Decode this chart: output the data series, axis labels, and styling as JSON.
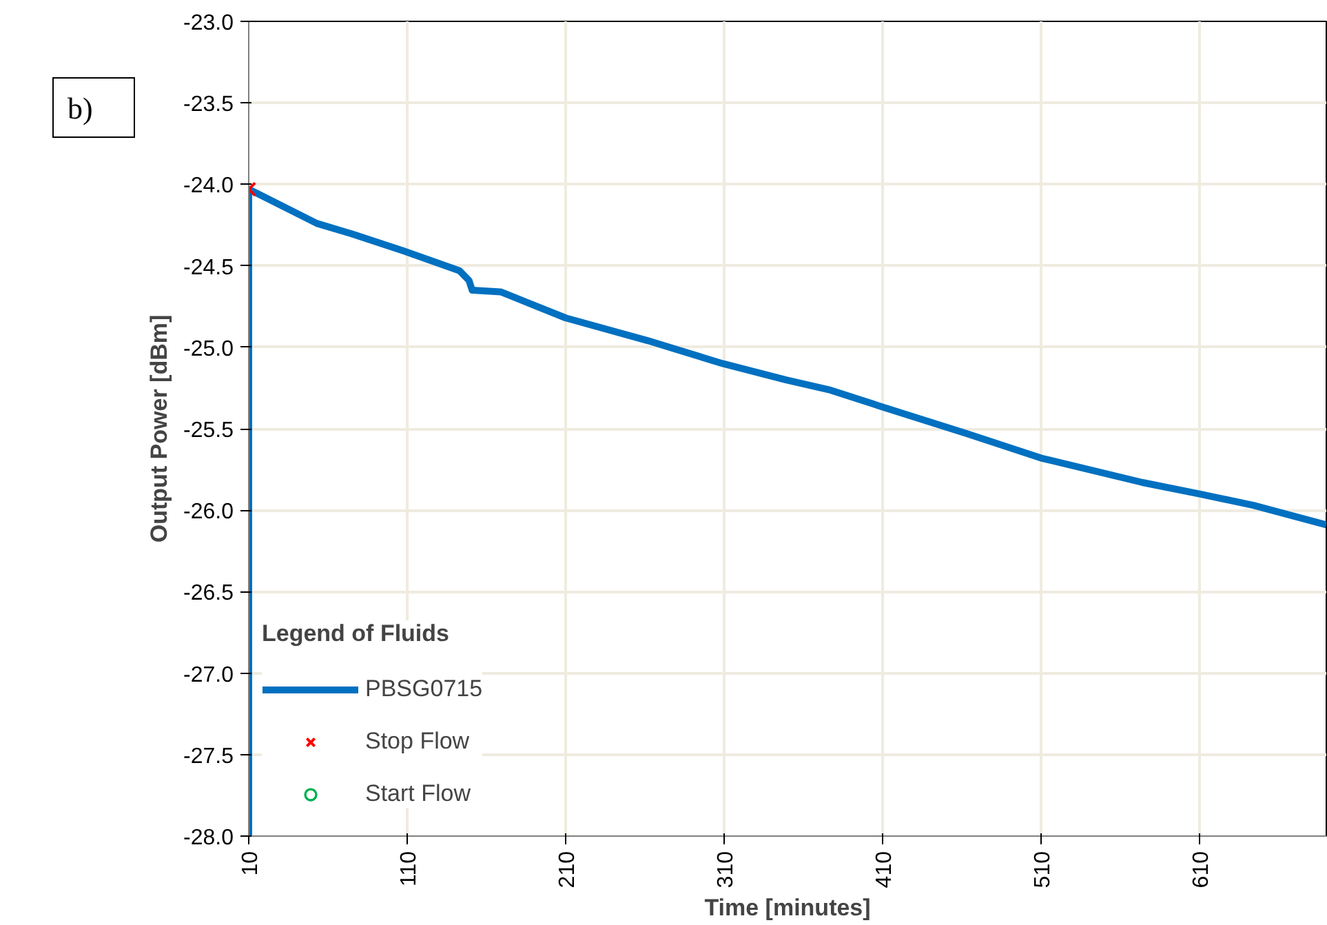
{
  "chart_data": {
    "type": "line",
    "xlabel": "Time [minutes]",
    "ylabel": "Output Power [dBm]",
    "legend_title": "Legend of Fluids",
    "annotations": [
      "b)"
    ],
    "xlim": [
      10,
      690
    ],
    "ylim": [
      -28,
      -23
    ],
    "xticks": [
      10,
      110,
      210,
      310,
      410,
      510,
      610
    ],
    "yticks": [
      {
        "value": -28,
        "label": "-28.0"
      },
      {
        "value": -27.5,
        "label": "-27.5"
      },
      {
        "value": -27,
        "label": "-27.0"
      },
      {
        "value": -26.5,
        "label": "-26.5"
      },
      {
        "value": -26,
        "label": "-26.0"
      },
      {
        "value": -25.5,
        "label": "-25.5"
      },
      {
        "value": -25,
        "label": "-25.0"
      },
      {
        "value": -24.5,
        "label": "-24.5"
      },
      {
        "value": -24,
        "label": "-24.0"
      },
      {
        "value": -23.5,
        "label": "-23.5"
      },
      {
        "value": -23,
        "label": "-23.0"
      }
    ],
    "grid": true,
    "legend": "bottom left",
    "series": [
      {
        "name": "PBSG0715",
        "color": "#0070c0",
        "x": [
          10,
          10,
          53,
          77,
          108,
          143,
          149,
          151,
          169,
          210,
          262,
          309,
          349,
          376,
          411,
          463,
          510,
          574,
          610,
          644,
          690
        ],
        "values": [
          -28,
          -24.03,
          -24.24,
          -24.31,
          -24.41,
          -24.53,
          -24.59,
          -24.65,
          -24.66,
          -24.82,
          -24.96,
          -25.1,
          -25.2,
          -25.26,
          -25.37,
          -25.53,
          -25.68,
          -25.83,
          -25.9,
          -25.97,
          -26.09
        ]
      },
      {
        "name": "Stop Flow",
        "type": "scatter",
        "marker": "cross",
        "color": "#ff0000",
        "x": [
          10
        ],
        "values": [
          -24.03
        ]
      },
      {
        "name": "Start Flow",
        "type": "scatter",
        "marker": "circle",
        "color": "#00b050"
      }
    ]
  }
}
